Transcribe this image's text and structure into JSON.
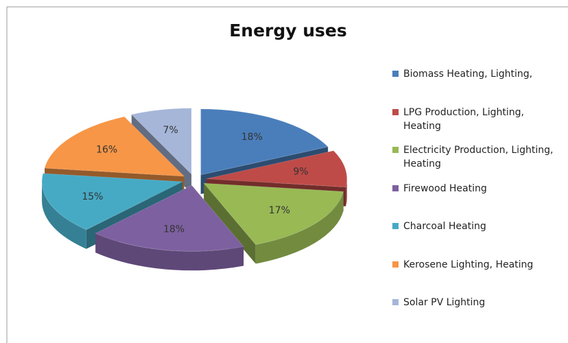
{
  "chart_data": {
    "type": "pie",
    "title": "Energy uses",
    "categories": [
      "Biomass Heating, Lighting,",
      "LPG Production, Lighting, Heating",
      "Electricity Production, Lighting, Heating",
      "Firewood Heating",
      "Charcoal Heating",
      "Kerosene Lighting, Heating",
      "Solar PV Lighting"
    ],
    "values": [
      18,
      9,
      17,
      18,
      15,
      16,
      7
    ],
    "value_labels": [
      "18%",
      "9%",
      "17%",
      "18%",
      "15%",
      "16%",
      "7%"
    ],
    "colors": [
      "#4a7ebb",
      "#be4b48",
      "#98b954",
      "#7d60a0",
      "#46aac5",
      "#f79646",
      "#a5b6d9"
    ],
    "legend": "right"
  }
}
